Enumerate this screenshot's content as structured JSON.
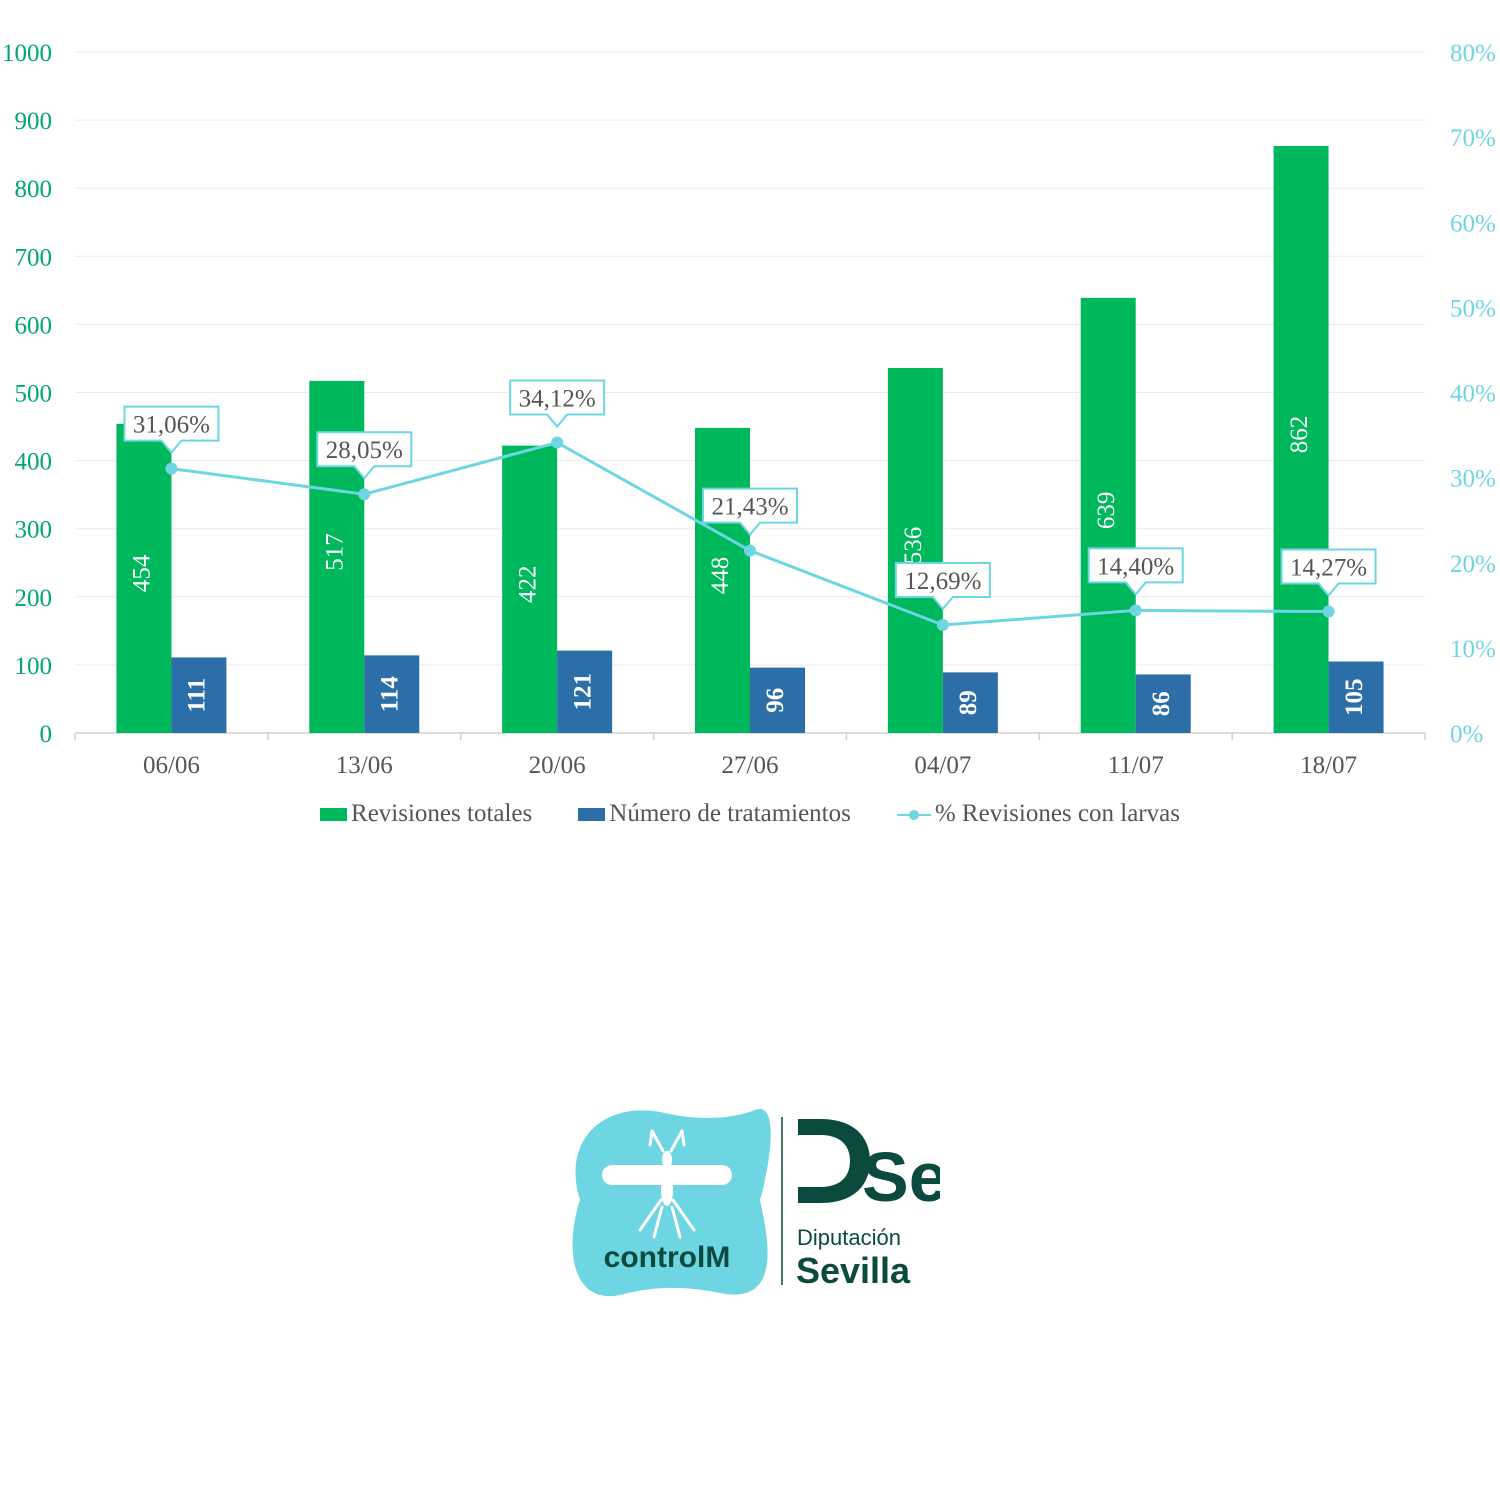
{
  "chart_data": {
    "type": "bar",
    "categories": [
      "06/06",
      "13/06",
      "20/06",
      "27/06",
      "04/07",
      "11/07",
      "18/07"
    ],
    "series": [
      {
        "name": "Revisiones totales",
        "type": "bar",
        "axis": "left",
        "color": "#00b85c",
        "values": [
          454,
          517,
          422,
          448,
          536,
          639,
          862
        ],
        "labels": [
          "454",
          "517",
          "422",
          "448",
          "536",
          "639",
          "862"
        ]
      },
      {
        "name": "Número de tratamientos",
        "type": "bar",
        "axis": "left",
        "color": "#2c6ea8",
        "values": [
          111,
          114,
          121,
          96,
          89,
          86,
          105
        ],
        "labels": [
          "111",
          "114",
          "121",
          "96",
          "89",
          "86",
          "105"
        ]
      },
      {
        "name": "% Revisiones con larvas",
        "type": "line",
        "axis": "right",
        "color": "#6dd6e2",
        "values": [
          31.06,
          28.05,
          34.12,
          21.43,
          12.69,
          14.4,
          14.27
        ],
        "labels": [
          "31,06%",
          "28,05%",
          "34,12%",
          "21,43%",
          "12,69%",
          "14,40%",
          "14,27%"
        ]
      }
    ],
    "y_left": {
      "ylim": [
        0,
        1000
      ],
      "ticks": [
        "0",
        "100",
        "200",
        "300",
        "400",
        "500",
        "600",
        "700",
        "800",
        "900",
        "1000"
      ],
      "color": "#00a86b"
    },
    "y_right": {
      "ylim": [
        0,
        80
      ],
      "ticks": [
        "0%",
        "10%",
        "20%",
        "30%",
        "40%",
        "50%",
        "60%",
        "70%",
        "80%"
      ],
      "color": "#6dd6e2"
    },
    "grid": true,
    "legend_position": "bottom"
  },
  "legend": {
    "revisiones": "Revisiones totales",
    "tratamientos": "Número de tratamientos",
    "larvas": "% Revisiones con larvas"
  },
  "logos": {
    "controlm": "controlM",
    "diputacion": "Diputación",
    "sevilla": "Sevilla",
    "dse": "DSe",
    "controlm_color": "#6dd6e2",
    "dse_color": "#0b4a3e"
  }
}
